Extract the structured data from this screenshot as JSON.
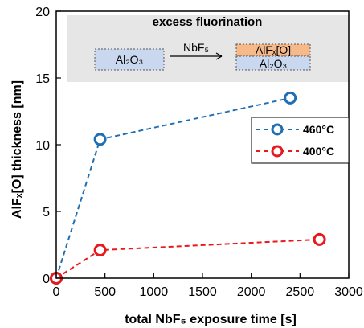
{
  "chart_data": {
    "type": "line",
    "xlabel": "total NbF₅ exposure time [s]",
    "ylabel": "AlFₓ[O] thickness [nm]",
    "xlim": [
      0,
      3000
    ],
    "ylim": [
      0,
      20
    ],
    "xticks": [
      "0",
      "500",
      "1000",
      "1500",
      "2000",
      "2500",
      "3000"
    ],
    "yticks": [
      "0",
      "5",
      "10",
      "15",
      "20"
    ],
    "grid": false,
    "legend_position": "right",
    "series": [
      {
        "name": "460°C",
        "color": "#1f6fb2",
        "line_style": "dashed",
        "marker": "open-circle",
        "x": [
          0,
          450,
          2400
        ],
        "y": [
          0,
          10.4,
          13.5
        ]
      },
      {
        "name": "400°C",
        "color": "#e8191c",
        "line_style": "dashed",
        "marker": "open-circle",
        "x": [
          0,
          450,
          2700
        ],
        "y": [
          0,
          2.1,
          2.9
        ]
      }
    ],
    "annotation": {
      "title": "excess fluorination",
      "reactant_box": "Al₂O₃",
      "arrow_label": "NbF₅",
      "product_top": "AlFₓ[O]",
      "product_bottom": "Al₂O₃",
      "background_color": "#e6e6e6",
      "reactant_color": "#c9d7ef",
      "product_top_color": "#f6b98a",
      "product_bottom_color": "#c9d7ef"
    }
  }
}
